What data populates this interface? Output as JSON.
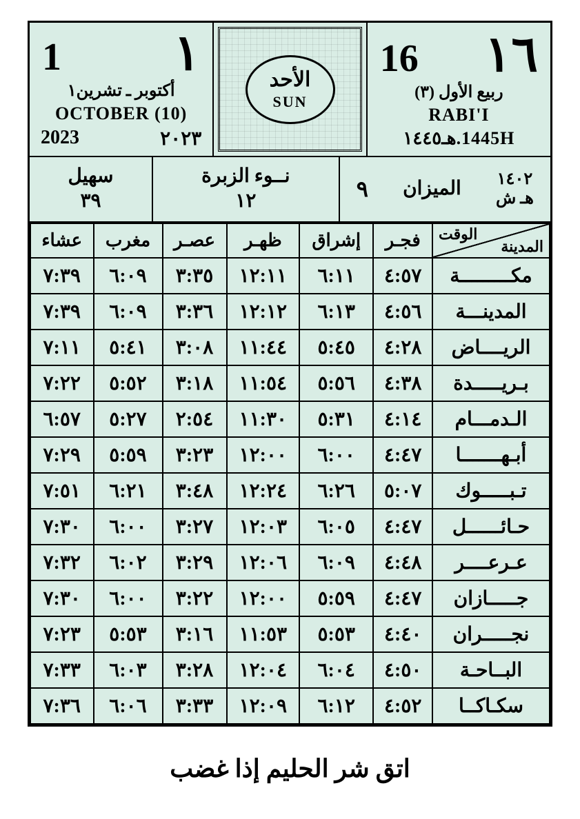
{
  "colors": {
    "bg": "#d9ede5",
    "border": "#000000"
  },
  "header": {
    "left": {
      "num_west": "1",
      "num_ar": "١",
      "month_ar": "أكتوبر ـ تشرين١",
      "month_en": "OCTOBER (10)",
      "year_west": "2023",
      "year_ar": "٢٠٢٣"
    },
    "center": {
      "day_ar": "الأحد",
      "day_en": "SUN"
    },
    "right": {
      "num_west": "16",
      "num_ar": "١٦",
      "month_ar": "ربيع الأول (٣)",
      "month_en": "RABI'I",
      "year_line": "1445H.هـ١٤٤٥"
    }
  },
  "sub": {
    "zodiac_num": "٩",
    "zodiac_name": "الميزان",
    "hs_num": "١٤٠٢",
    "hs_label": "هـ ش",
    "naw_name": "نــوء الزبرة",
    "naw_num": "١٢",
    "suhail_name": "سهيل",
    "suhail_num": "٣٩"
  },
  "table": {
    "head_city_top": "الوقت",
    "head_city_bot": "المدينة",
    "columns": [
      "فجـر",
      "إشراق",
      "ظهـر",
      "عصـر",
      "مغرب",
      "عشاء"
    ],
    "rows": [
      {
        "city": "مكـــــــــة",
        "times": [
          "٤:٥٧",
          "٦:١١",
          "١٢:١١",
          "٣:٣٥",
          "٦:٠٩",
          "٧:٣٩"
        ]
      },
      {
        "city": "المدينـــة",
        "times": [
          "٤:٥٦",
          "٦:١٣",
          "١٢:١٢",
          "٣:٣٦",
          "٦:٠٩",
          "٧:٣٩"
        ]
      },
      {
        "city": "الريــــاض",
        "times": [
          "٤:٢٨",
          "٥:٤٥",
          "١١:٤٤",
          "٣:٠٨",
          "٥:٤١",
          "٧:١١"
        ]
      },
      {
        "city": "بـريـــــدة",
        "times": [
          "٤:٣٨",
          "٥:٥٦",
          "١١:٥٤",
          "٣:١٨",
          "٥:٥٢",
          "٧:٢٢"
        ]
      },
      {
        "city": "الـدمـــام",
        "times": [
          "٤:١٤",
          "٥:٣١",
          "١١:٣٠",
          "٢:٥٤",
          "٥:٢٧",
          "٦:٥٧"
        ]
      },
      {
        "city": "أبـهـــــــا",
        "times": [
          "٤:٤٧",
          "٦:٠٠",
          "١٢:٠٠",
          "٣:٢٣",
          "٥:٥٩",
          "٧:٢٩"
        ]
      },
      {
        "city": "تـبـــــوك",
        "times": [
          "٥:٠٧",
          "٦:٢٦",
          "١٢:٢٤",
          "٣:٤٨",
          "٦:٢١",
          "٧:٥١"
        ]
      },
      {
        "city": "حـائــــــل",
        "times": [
          "٤:٤٧",
          "٦:٠٥",
          "١٢:٠٣",
          "٣:٢٧",
          "٦:٠٠",
          "٧:٣٠"
        ]
      },
      {
        "city": "عـرعــــر",
        "times": [
          "٤:٤٨",
          "٦:٠٩",
          "١٢:٠٦",
          "٣:٢٩",
          "٦:٠٢",
          "٧:٣٢"
        ]
      },
      {
        "city": "جـــــازان",
        "times": [
          "٤:٤٧",
          "٥:٥٩",
          "١٢:٠٠",
          "٣:٢٢",
          "٦:٠٠",
          "٧:٣٠"
        ]
      },
      {
        "city": "نجـــــران",
        "times": [
          "٤:٤٠",
          "٥:٥٣",
          "١١:٥٣",
          "٣:١٦",
          "٥:٥٣",
          "٧:٢٣"
        ]
      },
      {
        "city": "البــاحـة",
        "times": [
          "٤:٥٠",
          "٦:٠٤",
          "١٢:٠٤",
          "٣:٢٨",
          "٦:٠٣",
          "٧:٣٣"
        ]
      },
      {
        "city": "سكـاكــا",
        "times": [
          "٤:٥٢",
          "٦:١٢",
          "١٢:٠٩",
          "٣:٣٣",
          "٦:٠٦",
          "٧:٣٦"
        ]
      }
    ]
  },
  "footer": "اتق شر الحليم إذا غضب"
}
